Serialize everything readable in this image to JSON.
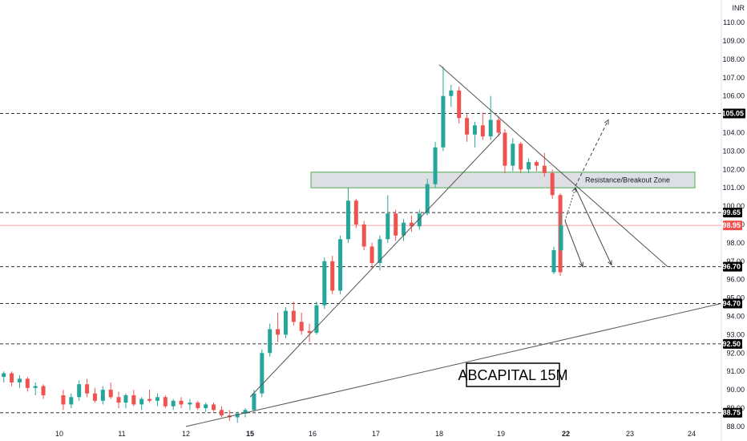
{
  "chart_data": {
    "type": "candlestick",
    "title": "ABCAPITAL 15M",
    "currency": "INR",
    "ylim": [
      88,
      111.7
    ],
    "y_ticks": [
      "88.00",
      "89.00",
      "90.00",
      "91.00",
      "92.00",
      "93.00",
      "94.00",
      "95.00",
      "96.00",
      "97.00",
      "98.00",
      "99.00",
      "100.00",
      "101.00",
      "102.00",
      "103.00",
      "104.00",
      "105.00",
      "106.00",
      "107.00",
      "108.00",
      "109.00",
      "110.00",
      "111.70"
    ],
    "x_labels": [
      {
        "label": "10",
        "bold": false
      },
      {
        "label": "11",
        "bold": false
      },
      {
        "label": "12",
        "bold": false
      },
      {
        "label": "15",
        "bold": true
      },
      {
        "label": "16",
        "bold": false
      },
      {
        "label": "17",
        "bold": false
      },
      {
        "label": "18",
        "bold": false
      },
      {
        "label": "19",
        "bold": false
      },
      {
        "label": "22",
        "bold": true
      },
      {
        "label": "23",
        "bold": false
      },
      {
        "label": "24",
        "bold": false
      }
    ],
    "horizontal_levels": [
      {
        "value": 105.05,
        "label": "105.05",
        "style": "dashed"
      },
      {
        "value": 99.65,
        "label": "99.65",
        "style": "dashed"
      },
      {
        "value": 96.7,
        "label": "96.70",
        "style": "dashed"
      },
      {
        "value": 94.7,
        "label": "94.70",
        "style": "dashed"
      },
      {
        "value": 92.5,
        "label": "92.50",
        "style": "dashed"
      },
      {
        "value": 88.75,
        "label": "88.75",
        "style": "dashed"
      }
    ],
    "last_price": {
      "value": 98.95,
      "label": "98.95"
    },
    "zone": {
      "label": "Resistance/Breakout Zone",
      "low": 101.0,
      "high": 101.85
    },
    "trendlines": [
      {
        "name": "rising-support-upper",
        "from": {
          "day": "15",
          "price": 89.6
        },
        "to": {
          "day": "19",
          "price": 104.0
        }
      },
      {
        "name": "falling-resistance",
        "from": {
          "day": "18",
          "price": 107.7
        },
        "to": {
          "day": "23+",
          "price": 96.7
        }
      },
      {
        "name": "rising-support-lower",
        "from": {
          "day": "12",
          "price": 88.0
        },
        "to": {
          "day": "24+",
          "price": 94.7
        }
      }
    ],
    "candles": [
      {
        "day": "9",
        "o": 90.9,
        "h": 91.2,
        "l": 90.5,
        "c": 91.0
      },
      {
        "day": "9",
        "o": 91.0,
        "h": 91.1,
        "l": 90.6,
        "c": 90.7
      },
      {
        "day": "9",
        "o": 90.7,
        "h": 91.0,
        "l": 90.4,
        "c": 90.9
      },
      {
        "day": "9",
        "o": 90.9,
        "h": 91.0,
        "l": 90.2,
        "c": 90.4
      },
      {
        "day": "9",
        "o": 90.4,
        "h": 90.8,
        "l": 90.1,
        "c": 90.6
      },
      {
        "day": "9",
        "o": 90.6,
        "h": 90.7,
        "l": 89.9,
        "c": 90.1
      },
      {
        "day": "9",
        "o": 90.1,
        "h": 90.4,
        "l": 89.7,
        "c": 90.2
      },
      {
        "day": "9",
        "o": 90.2,
        "h": 90.3,
        "l": 89.5,
        "c": 89.7
      },
      {
        "day": "10",
        "o": 89.7,
        "h": 90.0,
        "l": 88.9,
        "c": 89.2
      },
      {
        "day": "10",
        "o": 89.2,
        "h": 89.8,
        "l": 89.0,
        "c": 89.6
      },
      {
        "day": "10",
        "o": 89.6,
        "h": 90.5,
        "l": 89.4,
        "c": 90.3
      },
      {
        "day": "10",
        "o": 90.3,
        "h": 90.6,
        "l": 89.6,
        "c": 89.8
      },
      {
        "day": "10",
        "o": 89.8,
        "h": 90.1,
        "l": 89.3,
        "c": 89.4
      },
      {
        "day": "10",
        "o": 89.4,
        "h": 90.2,
        "l": 89.2,
        "c": 90.0
      },
      {
        "day": "10",
        "o": 90.0,
        "h": 90.4,
        "l": 89.5,
        "c": 89.6
      },
      {
        "day": "10",
        "o": 89.6,
        "h": 89.9,
        "l": 89.0,
        "c": 89.3
      },
      {
        "day": "11",
        "o": 89.3,
        "h": 89.8,
        "l": 89.0,
        "c": 89.7
      },
      {
        "day": "11",
        "o": 89.7,
        "h": 90.0,
        "l": 89.1,
        "c": 89.2
      },
      {
        "day": "11",
        "o": 89.2,
        "h": 89.6,
        "l": 88.9,
        "c": 89.5
      },
      {
        "day": "11",
        "o": 89.5,
        "h": 90.0,
        "l": 89.3,
        "c": 89.4
      },
      {
        "day": "11",
        "o": 89.4,
        "h": 89.8,
        "l": 89.1,
        "c": 89.6
      },
      {
        "day": "11",
        "o": 89.6,
        "h": 89.7,
        "l": 89.0,
        "c": 89.1
      },
      {
        "day": "11",
        "o": 89.1,
        "h": 89.5,
        "l": 88.9,
        "c": 89.4
      },
      {
        "day": "11",
        "o": 89.4,
        "h": 89.6,
        "l": 89.0,
        "c": 89.2
      },
      {
        "day": "12",
        "o": 89.2,
        "h": 89.5,
        "l": 88.9,
        "c": 89.3
      },
      {
        "day": "12",
        "o": 89.3,
        "h": 89.4,
        "l": 88.9,
        "c": 89.0
      },
      {
        "day": "12",
        "o": 89.0,
        "h": 89.3,
        "l": 88.8,
        "c": 89.2
      },
      {
        "day": "12",
        "o": 89.2,
        "h": 89.3,
        "l": 88.8,
        "c": 88.9
      },
      {
        "day": "12",
        "o": 88.9,
        "h": 89.1,
        "l": 88.5,
        "c": 88.6
      },
      {
        "day": "12",
        "o": 88.6,
        "h": 88.9,
        "l": 88.3,
        "c": 88.5
      },
      {
        "day": "12",
        "o": 88.5,
        "h": 88.8,
        "l": 88.2,
        "c": 88.7
      },
      {
        "day": "12",
        "o": 88.7,
        "h": 89.0,
        "l": 88.5,
        "c": 88.9
      },
      {
        "day": "15",
        "o": 88.9,
        "h": 90.0,
        "l": 88.8,
        "c": 89.8
      },
      {
        "day": "15",
        "o": 89.8,
        "h": 92.2,
        "l": 89.6,
        "c": 92.0
      },
      {
        "day": "15",
        "o": 92.0,
        "h": 93.6,
        "l": 91.8,
        "c": 93.3
      },
      {
        "day": "15",
        "o": 93.3,
        "h": 94.2,
        "l": 92.6,
        "c": 93.0
      },
      {
        "day": "15",
        "o": 93.0,
        "h": 94.5,
        "l": 92.8,
        "c": 94.3
      },
      {
        "day": "15",
        "o": 94.3,
        "h": 94.8,
        "l": 93.5,
        "c": 93.7
      },
      {
        "day": "15",
        "o": 93.7,
        "h": 94.2,
        "l": 93.0,
        "c": 93.2
      },
      {
        "day": "15",
        "o": 93.2,
        "h": 93.6,
        "l": 92.6,
        "c": 93.1
      },
      {
        "day": "16",
        "o": 93.1,
        "h": 94.8,
        "l": 93.0,
        "c": 94.6
      },
      {
        "day": "16",
        "o": 94.6,
        "h": 97.2,
        "l": 94.4,
        "c": 97.0
      },
      {
        "day": "16",
        "o": 97.0,
        "h": 97.3,
        "l": 95.2,
        "c": 95.4
      },
      {
        "day": "16",
        "o": 95.4,
        "h": 98.4,
        "l": 95.2,
        "c": 98.2
      },
      {
        "day": "16",
        "o": 98.2,
        "h": 101.0,
        "l": 98.0,
        "c": 100.3
      },
      {
        "day": "16",
        "o": 100.3,
        "h": 100.4,
        "l": 98.8,
        "c": 99.0
      },
      {
        "day": "16",
        "o": 99.0,
        "h": 99.2,
        "l": 97.6,
        "c": 97.8
      },
      {
        "day": "16",
        "o": 97.8,
        "h": 98.0,
        "l": 96.6,
        "c": 96.9
      },
      {
        "day": "17",
        "o": 96.9,
        "h": 98.4,
        "l": 96.5,
        "c": 98.2
      },
      {
        "day": "17",
        "o": 98.2,
        "h": 100.6,
        "l": 98.0,
        "c": 99.6
      },
      {
        "day": "17",
        "o": 99.6,
        "h": 99.8,
        "l": 98.1,
        "c": 98.4
      },
      {
        "day": "17",
        "o": 98.4,
        "h": 99.3,
        "l": 98.1,
        "c": 99.1
      },
      {
        "day": "17",
        "o": 99.1,
        "h": 99.5,
        "l": 98.6,
        "c": 98.9
      },
      {
        "day": "17",
        "o": 98.9,
        "h": 99.8,
        "l": 98.7,
        "c": 99.6
      },
      {
        "day": "17",
        "o": 99.6,
        "h": 101.5,
        "l": 99.5,
        "c": 101.2
      },
      {
        "day": "17",
        "o": 101.2,
        "h": 103.5,
        "l": 101.0,
        "c": 103.2
      },
      {
        "day": "18",
        "o": 103.2,
        "h": 107.6,
        "l": 103.0,
        "c": 106.0
      },
      {
        "day": "18",
        "o": 106.0,
        "h": 106.6,
        "l": 105.4,
        "c": 106.3
      },
      {
        "day": "18",
        "o": 106.3,
        "h": 106.5,
        "l": 104.5,
        "c": 104.8
      },
      {
        "day": "18",
        "o": 104.8,
        "h": 105.0,
        "l": 103.5,
        "c": 103.9
      },
      {
        "day": "18",
        "o": 103.9,
        "h": 104.6,
        "l": 103.2,
        "c": 104.4
      },
      {
        "day": "18",
        "o": 104.4,
        "h": 105.1,
        "l": 103.6,
        "c": 103.8
      },
      {
        "day": "18",
        "o": 103.8,
        "h": 106.0,
        "l": 103.6,
        "c": 104.7
      },
      {
        "day": "18",
        "o": 104.7,
        "h": 104.9,
        "l": 103.8,
        "c": 104.0
      },
      {
        "day": "19",
        "o": 104.0,
        "h": 104.2,
        "l": 101.8,
        "c": 102.2
      },
      {
        "day": "19",
        "o": 102.2,
        "h": 103.7,
        "l": 101.9,
        "c": 103.4
      },
      {
        "day": "19",
        "o": 103.4,
        "h": 103.5,
        "l": 101.8,
        "c": 102.0
      },
      {
        "day": "19",
        "o": 102.0,
        "h": 102.6,
        "l": 101.8,
        "c": 102.4
      },
      {
        "day": "19",
        "o": 102.4,
        "h": 102.5,
        "l": 101.9,
        "c": 102.2
      },
      {
        "day": "19",
        "o": 102.2,
        "h": 102.9,
        "l": 101.6,
        "c": 101.8
      },
      {
        "day": "19",
        "o": 101.8,
        "h": 102.0,
        "l": 100.4,
        "c": 100.6
      },
      {
        "day": "19",
        "o": 100.6,
        "h": 100.7,
        "l": 96.2,
        "c": 96.4
      },
      {
        "day": "22",
        "o": 96.4,
        "h": 97.8,
        "l": 96.3,
        "c": 97.6
      },
      {
        "day": "22",
        "o": 97.6,
        "h": 99.6,
        "l": 97.5,
        "c": 98.95
      }
    ]
  }
}
